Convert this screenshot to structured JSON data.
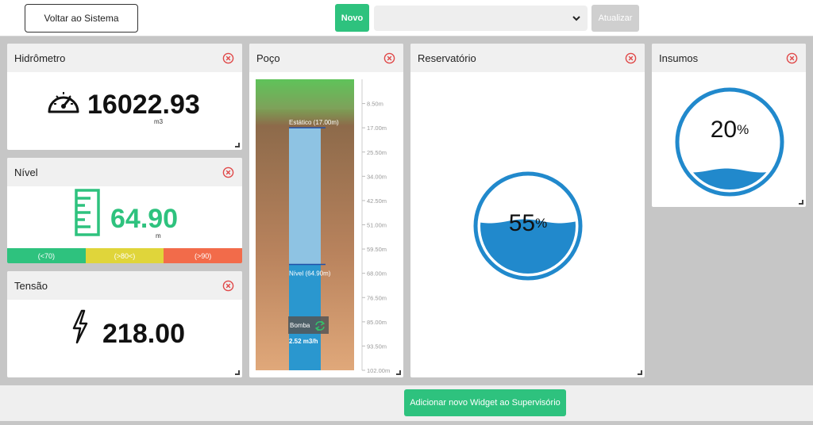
{
  "topbar": {
    "back_label": "Voltar ao Sistema",
    "novo_label": "Novo",
    "select_value": "",
    "atualizar_label": "Atualizar"
  },
  "hidrometro": {
    "title": "Hidrômetro",
    "value": "16022.93",
    "unit": "m3",
    "icon": "speedometer-icon"
  },
  "nivel": {
    "title": "Nível",
    "value": "64.90",
    "unit": "m",
    "icon": "ruler-icon",
    "value_color": "#2ec27e",
    "ranges": [
      {
        "label": "(<70)",
        "color": "#2ec27e"
      },
      {
        "label": "(>80<)",
        "color": "#e0d53a"
      },
      {
        "label": "(>90)",
        "color": "#f26b4a"
      }
    ]
  },
  "tensao": {
    "title": "Tensão",
    "value": "218.00",
    "icon": "lightning-icon"
  },
  "poco": {
    "title": "Poço",
    "static_label": "Estático (17.00m)",
    "level_label": "Nível (64.90m)",
    "pump_label": "Bomba",
    "flow_label": "2.52 m3/h",
    "scale": [
      "8.50m",
      "17.00m",
      "25.50m",
      "34.00m",
      "42.50m",
      "51.00m",
      "59.50m",
      "68.00m",
      "76.50m",
      "85.00m",
      "93.50m",
      "102.00m"
    ],
    "static_depth": 17.0,
    "level_depth": 64.9,
    "max_depth": 102.0
  },
  "reservatorio": {
    "title": "Reservatório",
    "percent": "55",
    "fill_fraction": 0.55
  },
  "insumos": {
    "title": "Insumos",
    "percent": "20",
    "fill_fraction": 0.2
  },
  "footer": {
    "add_label": "Adicionar novo Widget ao Supervisório"
  },
  "colors": {
    "accent_green": "#2ec27e",
    "water_blue": "#1f8ac9",
    "close_red": "#e04848"
  }
}
